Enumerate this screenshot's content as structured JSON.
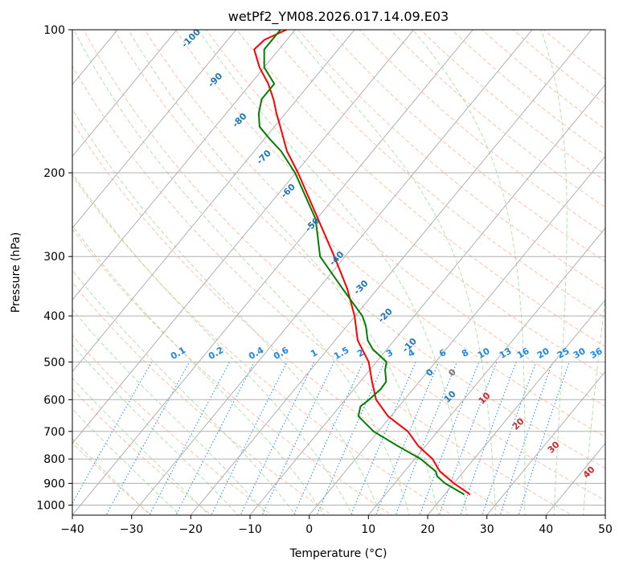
{
  "title": "wetPf2_YM08.2026.017.14.09.E03",
  "chart_data": {
    "type": "skew-t",
    "title": "wetPf2_YM08.2026.017.14.09.E03",
    "xlabel": "Temperature (°C)",
    "ylabel": "Pressure (hPa)",
    "xlim": [
      -40,
      50
    ],
    "ylim": [
      1050,
      100
    ],
    "x_ticks": [
      -40,
      -30,
      -20,
      -10,
      0,
      10,
      20,
      30,
      40,
      50
    ],
    "x_tick_labels": [
      "−40",
      "−30",
      "−20",
      "−10",
      "0",
      "10",
      "20",
      "30",
      "40",
      "50"
    ],
    "y_ticks": [
      1000,
      900,
      800,
      700,
      600,
      500,
      400,
      300,
      200,
      100
    ],
    "y_tick_labels": [
      "1000",
      "900",
      "800",
      "700",
      "600",
      "500",
      "400",
      "300",
      "200",
      "100"
    ],
    "colors": {
      "temperature": "#ff0000",
      "dewpoint": "#008000",
      "mixing": "#1e88e5",
      "dry": "#1f77b4",
      "moist": "#d62728",
      "grid": "#b0b0b0"
    },
    "series": [
      {
        "name": "temperature",
        "color": "#ff0000",
        "points": [
          [
            950,
            24.3
          ],
          [
            900,
            20.0
          ],
          [
            850,
            16.0
          ],
          [
            800,
            13.0
          ],
          [
            750,
            8.7
          ],
          [
            700,
            5.0
          ],
          [
            650,
            -0.5
          ],
          [
            600,
            -4.8
          ],
          [
            550,
            -8.0
          ],
          [
            500,
            -11.3
          ],
          [
            450,
            -16.2
          ],
          [
            400,
            -20.1
          ],
          [
            350,
            -25.2
          ],
          [
            300,
            -31.8
          ],
          [
            250,
            -39.8
          ],
          [
            200,
            -49.6
          ],
          [
            180,
            -54.5
          ],
          [
            160,
            -59.0
          ],
          [
            150,
            -61.5
          ],
          [
            140,
            -64.0
          ],
          [
            130,
            -67.0
          ],
          [
            120,
            -70.8
          ],
          [
            110,
            -74.2
          ],
          [
            105,
            -73.8
          ],
          [
            100,
            -71.5
          ]
        ]
      },
      {
        "name": "dewpoint",
        "color": "#008000",
        "points": [
          [
            950,
            23.3
          ],
          [
            900,
            18.5
          ],
          [
            870,
            16.2
          ],
          [
            850,
            15.3
          ],
          [
            800,
            11.0
          ],
          [
            750,
            5.2
          ],
          [
            700,
            -0.8
          ],
          [
            650,
            -5.5
          ],
          [
            620,
            -6.5
          ],
          [
            600,
            -6.0
          ],
          [
            570,
            -5.5
          ],
          [
            550,
            -5.6
          ],
          [
            520,
            -7.4
          ],
          [
            500,
            -8.3
          ],
          [
            470,
            -12.4
          ],
          [
            450,
            -14.5
          ],
          [
            420,
            -16.8
          ],
          [
            400,
            -18.8
          ],
          [
            350,
            -26.0
          ],
          [
            300,
            -34.2
          ],
          [
            250,
            -40.2
          ],
          [
            200,
            -50.1
          ],
          [
            180,
            -55.5
          ],
          [
            170,
            -59.0
          ],
          [
            160,
            -62.5
          ],
          [
            150,
            -64.5
          ],
          [
            140,
            -66.0
          ],
          [
            130,
            -66.0
          ],
          [
            120,
            -70.0
          ],
          [
            110,
            -72.5
          ],
          [
            100,
            -72.5
          ]
        ]
      }
    ],
    "dry_adiabat_labels": [
      "-100",
      "-90",
      "-80",
      "-70",
      "-60",
      "-50",
      "-40",
      "-30",
      "-20",
      "-10",
      "0",
      "10"
    ],
    "moist_adiabat_labels": [
      "10",
      "20",
      "30",
      "40"
    ],
    "mixing_ratio_labels": [
      "0.1",
      "0.2",
      "0.4",
      "0.6",
      "1",
      "1.5",
      "2",
      "3",
      "4",
      "6",
      "8",
      "10",
      "13",
      "16",
      "20",
      "25",
      "30",
      "36"
    ]
  }
}
